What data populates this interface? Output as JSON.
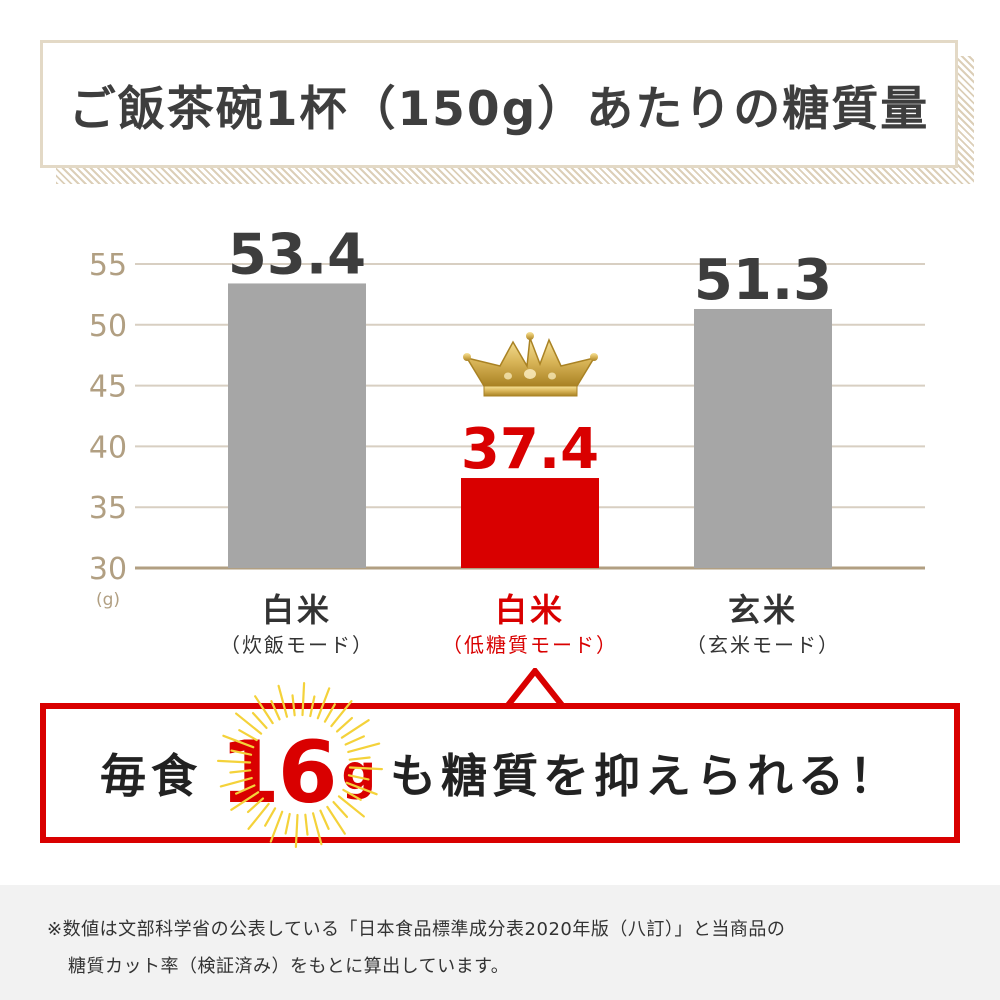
{
  "title": "ご飯茶碗1杯（150g）あたりの糖質量",
  "chart_data": {
    "type": "bar",
    "categories": [
      "白米",
      "白米",
      "玄米"
    ],
    "category_subtitles": [
      "（炊飯モード）",
      "（低糖質モード）",
      "（玄米モード）"
    ],
    "values": [
      53.4,
      37.4,
      51.3
    ],
    "data_labels": [
      "53.4",
      "37.4",
      "51.3"
    ],
    "ylim": [
      30,
      55
    ],
    "yticks": [
      30,
      35,
      40,
      45,
      50,
      55
    ],
    "unit": "(g)",
    "grid": true,
    "highlight_index": 1,
    "colors": {
      "bar": "#a6a6a6",
      "highlight": "#d90000",
      "label": "#3d3d3d",
      "highlight_label": "#d90000",
      "grid": "#d8cfc2",
      "axis": "#b19f82"
    }
  },
  "icons": {
    "highlight_marker": "crown-icon",
    "callout_decoration": "sunburst-icon"
  },
  "callout": {
    "prefix": "毎食",
    "number": "16",
    "unit": "g",
    "suffix": "も糖質を抑えられる！"
  },
  "footnote": {
    "line1": "※数値は文部科学省の公表している「日本食品標準成分表2020年版（八訂）」と当商品の",
    "line2": "糖質カット率（検証済み）をもとに算出しています。"
  }
}
